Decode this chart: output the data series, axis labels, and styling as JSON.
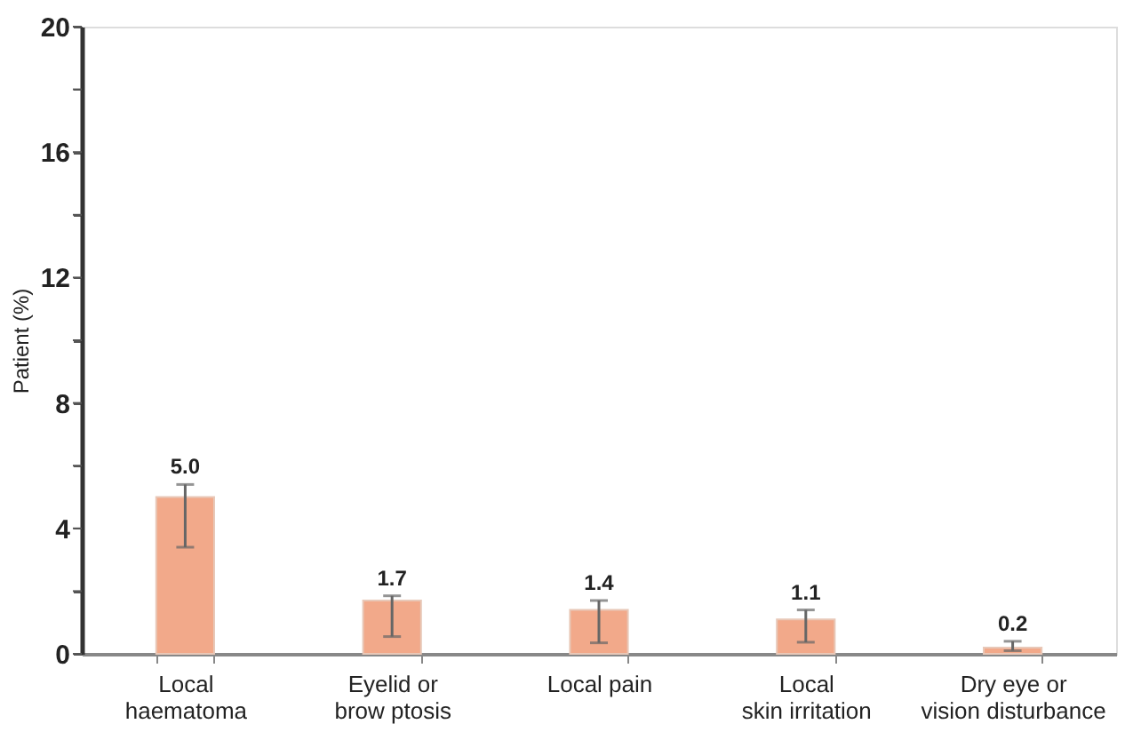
{
  "chart_data": {
    "type": "bar",
    "ylabel": "Patient (%)",
    "categories": [
      "Local\nhaematoma",
      "Eyelid or\nbrow ptosis",
      "Local pain",
      "Local\nskin irritation",
      "Dry eye or\nvision disturbance"
    ],
    "values": [
      5.0,
      1.7,
      1.4,
      1.1,
      0.2
    ],
    "errors": [
      [
        3.4,
        5.4
      ],
      [
        0.55,
        1.85
      ],
      [
        0.35,
        1.7
      ],
      [
        0.37,
        1.4
      ],
      [
        0.1,
        0.4
      ]
    ],
    "color": "#f2a98a",
    "value_labels": [
      "5.0",
      "1.7",
      "1.4",
      "1.1",
      "0.2"
    ],
    "ylim": [
      0,
      20
    ],
    "yticks": [
      0,
      {
        "value": 2,
        "label": null
      },
      4,
      {
        "value": 6,
        "label": null
      },
      8,
      {
        "value": 10,
        "label": null
      },
      12,
      {
        "value": 14,
        "label": null
      },
      16,
      {
        "value": 18,
        "label": null
      },
      20
    ],
    "grid": false
  }
}
